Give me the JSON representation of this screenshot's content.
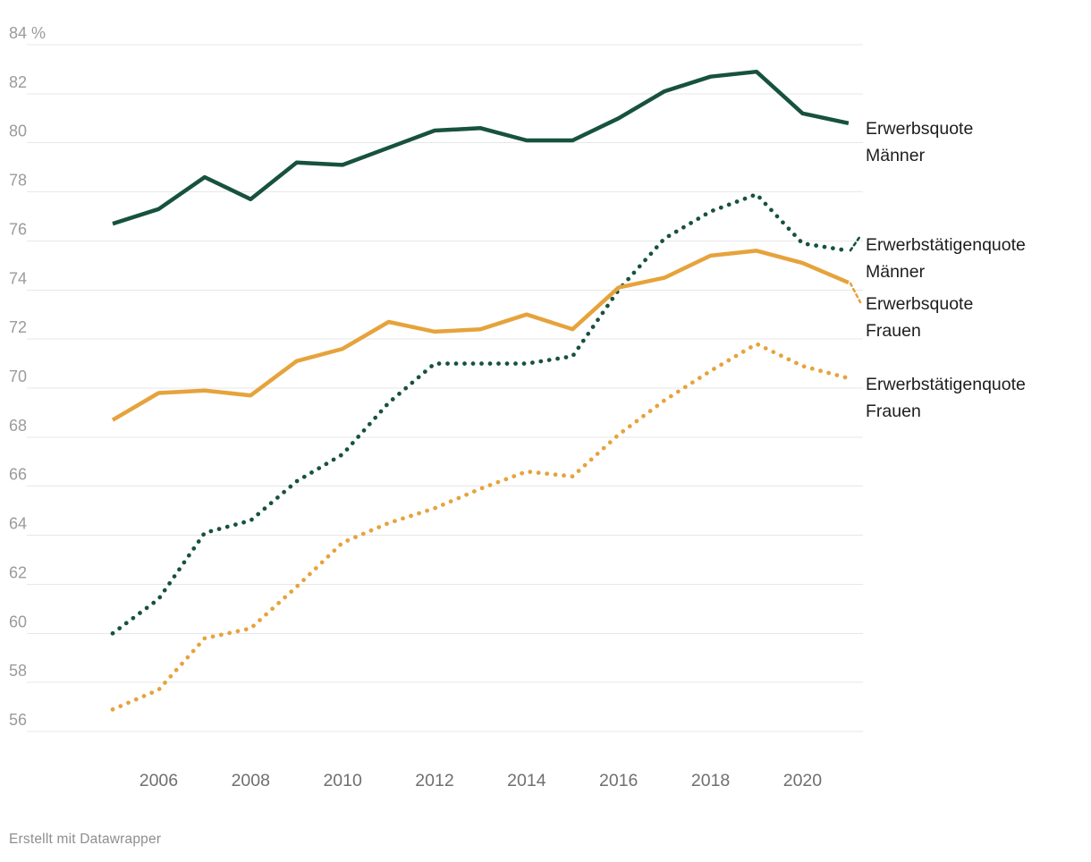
{
  "chart_data": {
    "type": "line",
    "title": "",
    "x_years": [
      2005,
      2006,
      2007,
      2008,
      2009,
      2010,
      2011,
      2012,
      2013,
      2014,
      2015,
      2016,
      2017,
      2018,
      2019,
      2020,
      2021
    ],
    "x_tick_years": [
      2006,
      2008,
      2010,
      2012,
      2014,
      2016,
      2018,
      2020
    ],
    "x_tick_labels": [
      "2006",
      "2008",
      "2010",
      "2012",
      "2014",
      "2016",
      "2018",
      "2020"
    ],
    "y_ticks": [
      {
        "value": 84,
        "label": "84 %"
      },
      {
        "value": 82,
        "label": "82"
      },
      {
        "value": 80,
        "label": "80"
      },
      {
        "value": 78,
        "label": "78"
      },
      {
        "value": 76,
        "label": "76"
      },
      {
        "value": 74,
        "label": "74"
      },
      {
        "value": 72,
        "label": "72"
      },
      {
        "value": 70,
        "label": "70"
      },
      {
        "value": 68,
        "label": "68"
      },
      {
        "value": 66,
        "label": "66"
      },
      {
        "value": 64,
        "label": "64"
      },
      {
        "value": 62,
        "label": "62"
      },
      {
        "value": 60,
        "label": "60"
      },
      {
        "value": 58,
        "label": "58"
      },
      {
        "value": 56,
        "label": "56"
      }
    ],
    "ylim": [
      56,
      84
    ],
    "xlim": [
      2005,
      2021
    ],
    "grid": true,
    "unit": "%",
    "legend_position": "labels-right-of-line-ends",
    "colors": {
      "maenner": "#17523D",
      "frauen": "#E6A33C"
    },
    "series": [
      {
        "id": "erwerbsquote-maenner",
        "name": "Erwerbsquote Männer",
        "label_lines": [
          "Erwerbsquote",
          "Männer"
        ],
        "gender": "maenner",
        "line_style": "solid",
        "values": [
          76.7,
          77.3,
          78.6,
          77.7,
          79.2,
          79.1,
          79.8,
          80.5,
          80.6,
          80.1,
          80.1,
          81.0,
          82.1,
          82.7,
          82.9,
          81.2,
          80.8
        ]
      },
      {
        "id": "erwerbstaetigenquote-maenner",
        "name": "Erwerbstätigenquote Männer",
        "label_lines": [
          "Erwerbstätigenquote",
          "Männer"
        ],
        "gender": "maenner",
        "line_style": "dotted",
        "values": [
          60.0,
          61.4,
          64.1,
          64.6,
          66.2,
          67.3,
          69.4,
          71.0,
          71.0,
          71.0,
          71.3,
          74.0,
          76.1,
          77.2,
          77.9,
          75.9,
          75.6
        ]
      },
      {
        "id": "erwerbsquote-frauen",
        "name": "Erwerbsquote Frauen",
        "label_lines": [
          "Erwerbsquote",
          "Frauen"
        ],
        "gender": "frauen",
        "line_style": "solid",
        "values": [
          68.7,
          69.8,
          69.9,
          69.7,
          71.1,
          71.6,
          72.7,
          72.3,
          72.4,
          73.0,
          72.4,
          74.1,
          74.5,
          75.4,
          75.6,
          75.1,
          74.3
        ]
      },
      {
        "id": "erwerbstaetigenquote-frauen",
        "name": "Erwerbstätigenquote Frauen",
        "label_lines": [
          "Erwerbstätigenquote",
          "Frauen"
        ],
        "gender": "frauen",
        "line_style": "dotted",
        "values": [
          56.9,
          57.7,
          59.8,
          60.2,
          61.9,
          63.7,
          64.5,
          65.1,
          65.9,
          66.6,
          66.4,
          68.1,
          69.5,
          70.7,
          71.8,
          70.9,
          70.4
        ]
      }
    ],
    "footer": "Erstellt mit Datawrapper"
  }
}
